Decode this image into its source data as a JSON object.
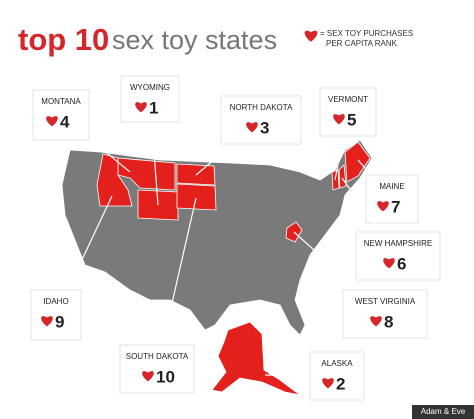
{
  "header": {
    "title_bold": "top 10",
    "title_light": "sex toy states",
    "legend_lines": [
      "= SEX TOY PURCHASES",
      "PER CAPITA RANK"
    ]
  },
  "states": [
    {
      "name": "MONTANA",
      "rank": 4
    },
    {
      "name": "WYOMING",
      "rank": 1
    },
    {
      "name": "NORTH DAKOTA",
      "rank": 3
    },
    {
      "name": "VERMONT",
      "rank": 5
    },
    {
      "name": "MAINE",
      "rank": 7
    },
    {
      "name": "NEW HAMPSHIRE",
      "rank": 6
    },
    {
      "name": "WEST VIRGINIA",
      "rank": 8
    },
    {
      "name": "IDAHO",
      "rank": 9
    },
    {
      "name": "SOUTH DAKOTA",
      "rank": 10
    },
    {
      "name": "ALASKA",
      "rank": 2
    }
  ],
  "credit": "Adam & Eve"
}
